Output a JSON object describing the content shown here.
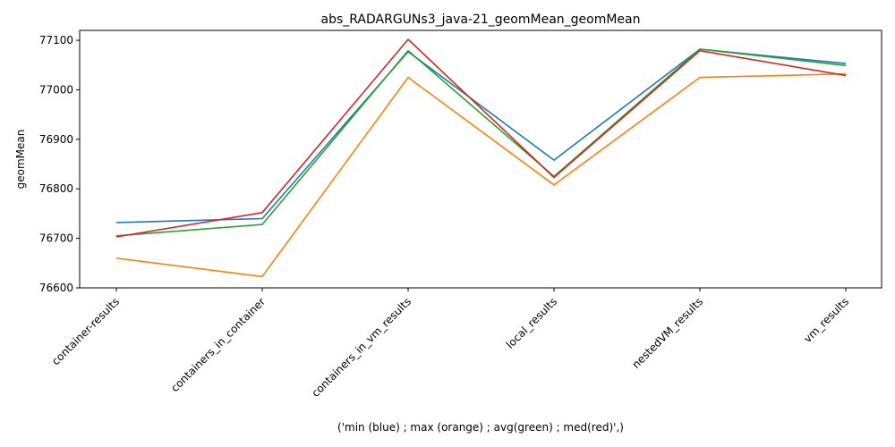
{
  "chart_data": {
    "type": "line",
    "title": "abs_RADARGUNs3_java-21_geomMean_geomMean",
    "xlabel": "('min (blue) ; max (orange) ; avg(green) ; med(red)',)",
    "ylabel": "geomMean",
    "categories": [
      "container-results",
      "containers_in_container",
      "containers_in_vm_results",
      "local_results",
      "nestedVM_results",
      "vm_results"
    ],
    "ylim": [
      76600,
      77120
    ],
    "yticks": [
      76600,
      76700,
      76800,
      76900,
      77000,
      77100
    ],
    "grid": false,
    "series": [
      {
        "color": "#1f77b4",
        "values": [
          76732,
          76740,
          77077,
          76858,
          77082,
          77053
        ]
      },
      {
        "color": "#ff7f0e",
        "values": [
          76660,
          76623,
          77025,
          76808,
          77025,
          77032
        ]
      },
      {
        "color": "#2ca02c",
        "values": [
          76705,
          76728,
          77079,
          76825,
          77082,
          77049
        ]
      },
      {
        "color": "#d62728",
        "values": [
          76703,
          76752,
          77102,
          76823,
          77079,
          77029
        ]
      }
    ]
  }
}
